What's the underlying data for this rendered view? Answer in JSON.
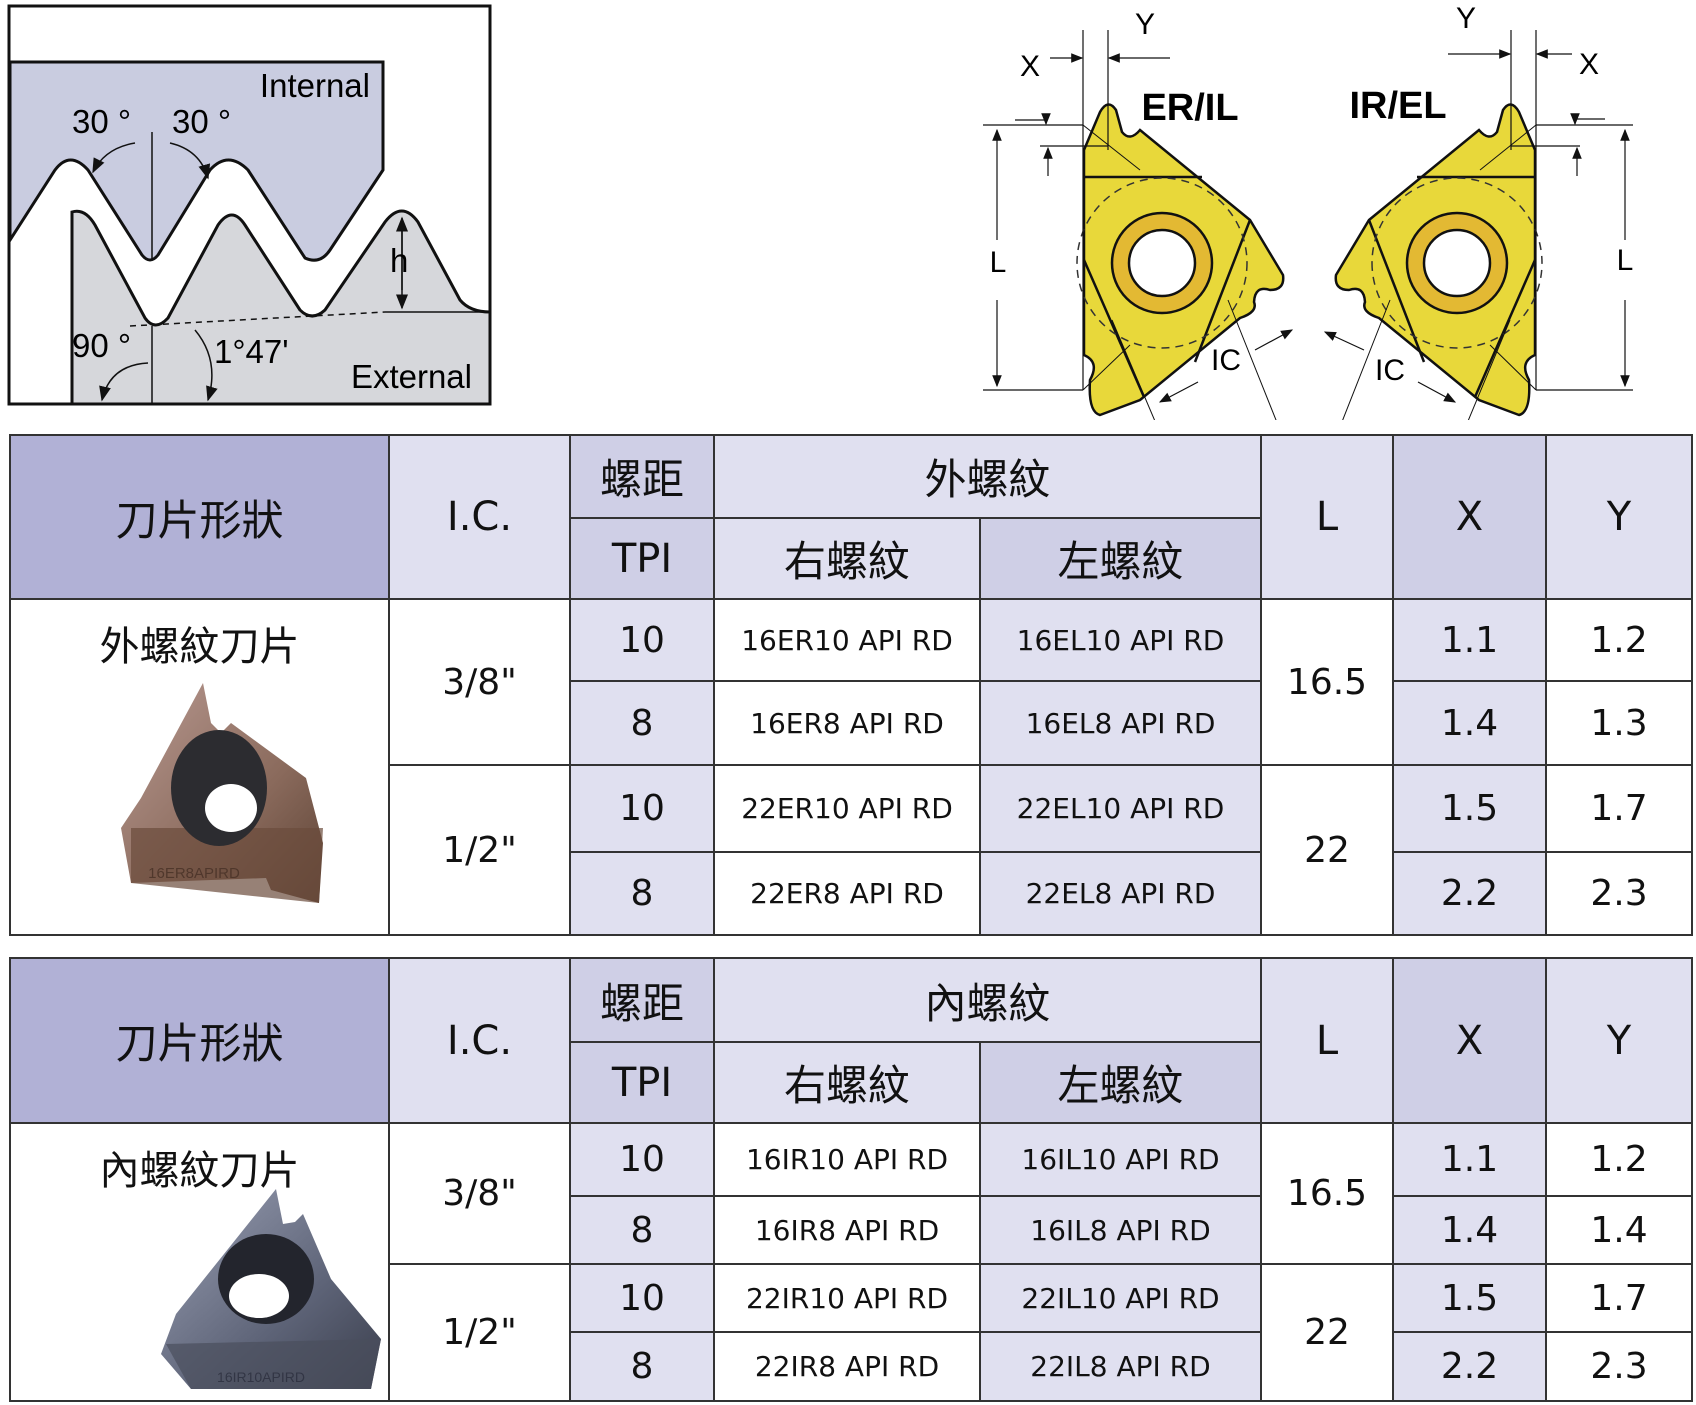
{
  "thread_diagram": {
    "internal_label": "Internal",
    "external_label": "External",
    "angle_left": "30 °",
    "angle_right": "30 °",
    "height_label": "h",
    "right_angle": "90 °",
    "taper_angle": "1°47'"
  },
  "insert_diagram": {
    "left_label": "ER/IL",
    "right_label": "IR/EL",
    "x_label": "X",
    "y_label": "Y",
    "l_label": "L",
    "ic_label": "IC",
    "insert_color": "#e8d83a",
    "ring_color": "#e3b933"
  },
  "tables": [
    {
      "header": {
        "shape": "刀片形狀",
        "ic": "I.C.",
        "pitch": "螺距",
        "tpi": "TPI",
        "thread_type": "外螺紋",
        "right_hand": "右螺紋",
        "left_hand": "左螺紋",
        "l": "L",
        "x": "X",
        "y": "Y"
      },
      "shape_label": "外螺紋刀片",
      "insert_image_text": "16ER8APIRD",
      "groups": [
        {
          "ic": "3/8\"",
          "l": "16.5",
          "rows": [
            {
              "tpi": "10",
              "right": "16ER10 API RD",
              "left": "16EL10 API RD",
              "x": "1.1",
              "y": "1.2"
            },
            {
              "tpi": "8",
              "right": "16ER8 API RD",
              "left": "16EL8 API RD",
              "x": "1.4",
              "y": "1.3"
            }
          ]
        },
        {
          "ic": "1/2\"",
          "l": "22",
          "rows": [
            {
              "tpi": "10",
              "right": "22ER10 API RD",
              "left": "22EL10 API RD",
              "x": "1.5",
              "y": "1.7"
            },
            {
              "tpi": "8",
              "right": "22ER8 API RD",
              "left": "22EL8 API RD",
              "x": "2.2",
              "y": "2.3"
            }
          ]
        }
      ]
    },
    {
      "header": {
        "shape": "刀片形狀",
        "ic": "I.C.",
        "pitch": "螺距",
        "tpi": "TPI",
        "thread_type": "內螺紋",
        "right_hand": "右螺紋",
        "left_hand": "左螺紋",
        "l": "L",
        "x": "X",
        "y": "Y"
      },
      "shape_label": "內螺紋刀片",
      "insert_image_text": "16IR10APIRD",
      "groups": [
        {
          "ic": "3/8\"",
          "l": "16.5",
          "rows": [
            {
              "tpi": "10",
              "right": "16IR10 API RD",
              "left": "16IL10 API RD",
              "x": "1.1",
              "y": "1.2"
            },
            {
              "tpi": "8",
              "right": "16IR8 API RD",
              "left": "16IL8 API RD",
              "x": "1.4",
              "y": "1.4"
            }
          ]
        },
        {
          "ic": "1/2\"",
          "l": "22",
          "rows": [
            {
              "tpi": "10",
              "right": "22IR10 API RD",
              "left": "22IL10 API RD",
              "x": "1.5",
              "y": "1.7"
            },
            {
              "tpi": "8",
              "right": "22IR8 API RD",
              "left": "22IL8 API RD",
              "x": "2.2",
              "y": "2.3"
            }
          ]
        }
      ]
    }
  ]
}
